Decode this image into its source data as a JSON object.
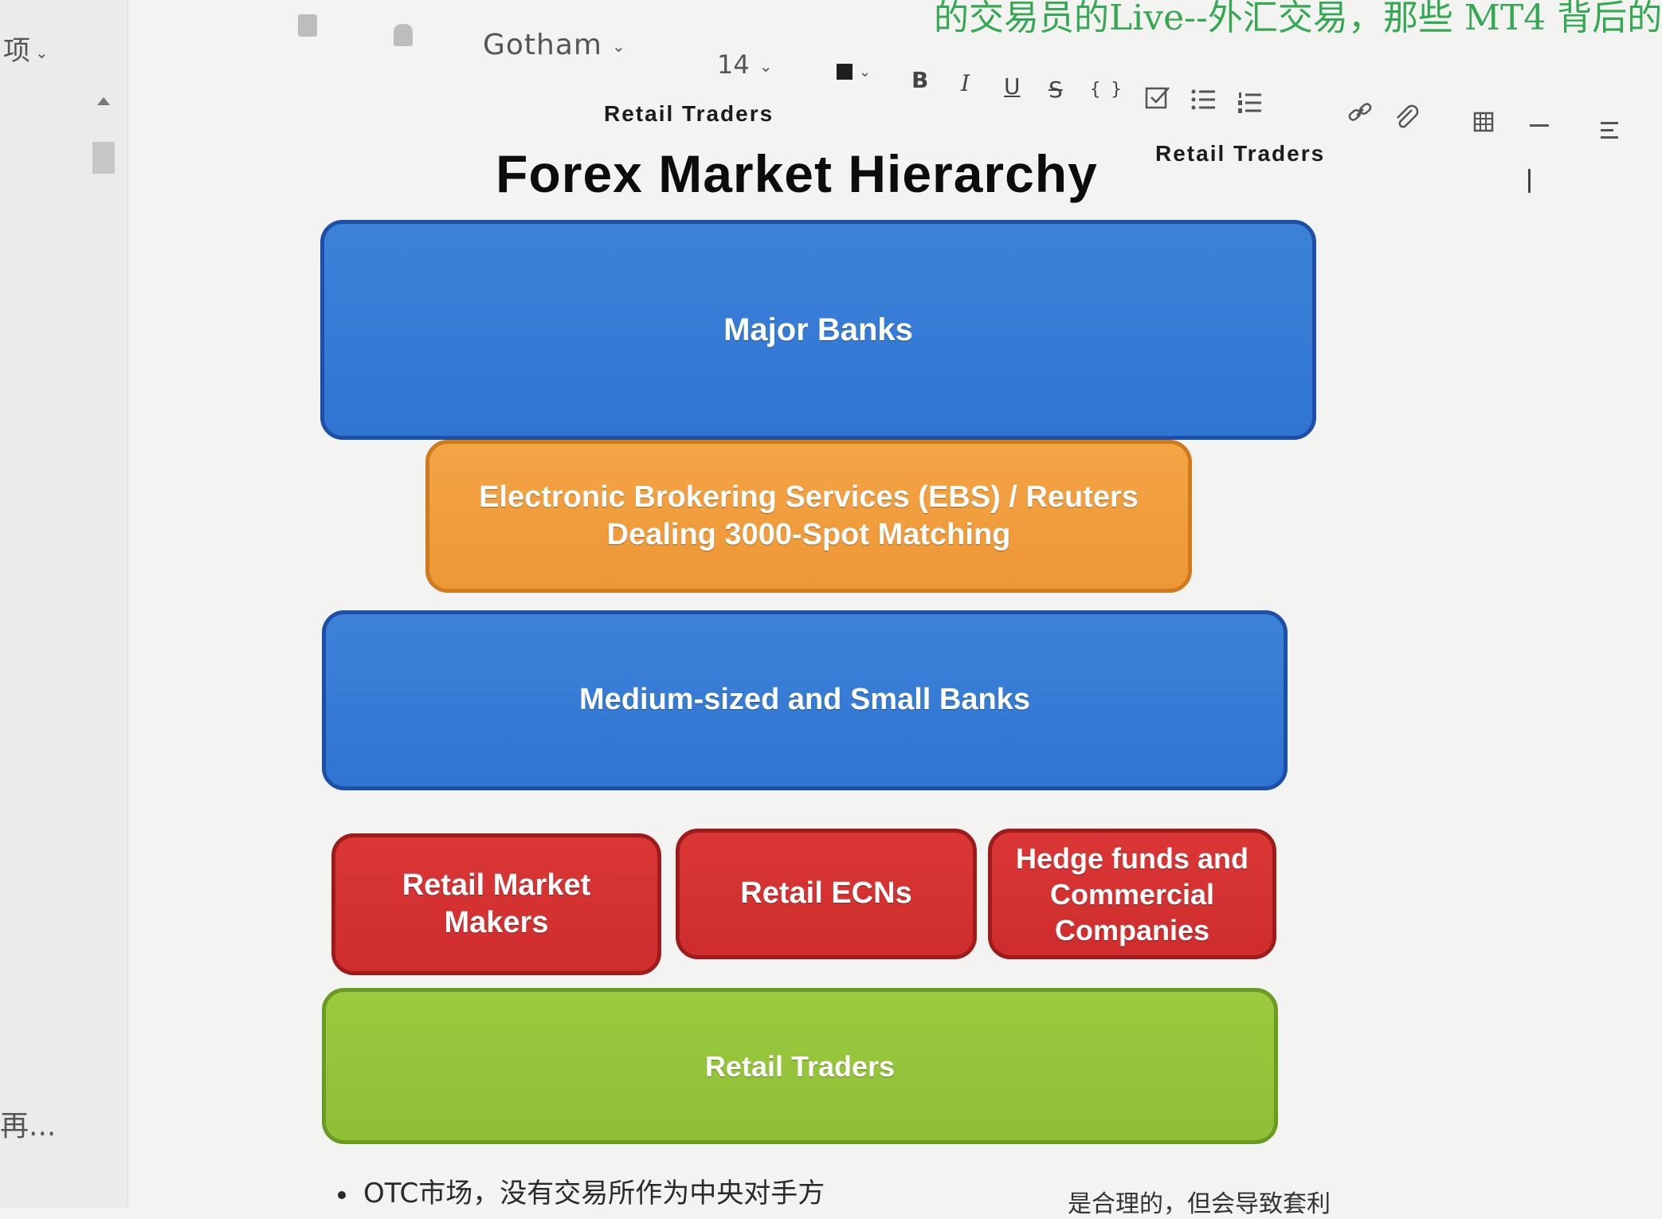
{
  "left_panel": {
    "top_label": "项",
    "bottom_text": "再..."
  },
  "toolbar": {
    "font_family": "Gotham",
    "font_size": "14",
    "bold": "B",
    "italic": "I",
    "underline": "U",
    "strikethrough": "S",
    "code": "{ }",
    "status_text": "的交易员的Live--外汇交易，那些 MT4 背后的"
  },
  "document": {
    "cut_text_1": "Retail Traders",
    "cut_text_2": "Retail Traders",
    "diagram": {
      "title": "Forex Market Hierarchy",
      "tiers": {
        "major_banks": "Major Banks",
        "ebs": "Electronic Brokering Services (EBS) / Reuters Dealing 3000-Spot Matching",
        "medium_banks": "Medium-sized and Small Banks",
        "retail_market_makers": "Retail Market Makers",
        "retail_ecns": "Retail ECNs",
        "hedge_funds": "Hedge funds and Commercial Companies",
        "retail_traders": "Retail Traders"
      },
      "colors": {
        "blue": "#2f75d1",
        "orange": "#ee9737",
        "red": "#cf2d2d",
        "green": "#8fbf35"
      }
    },
    "bullet_1": "OTC市场，没有交易所作为中央对手方",
    "bullet_1_trailing": "是合理的，但会导致套利"
  }
}
